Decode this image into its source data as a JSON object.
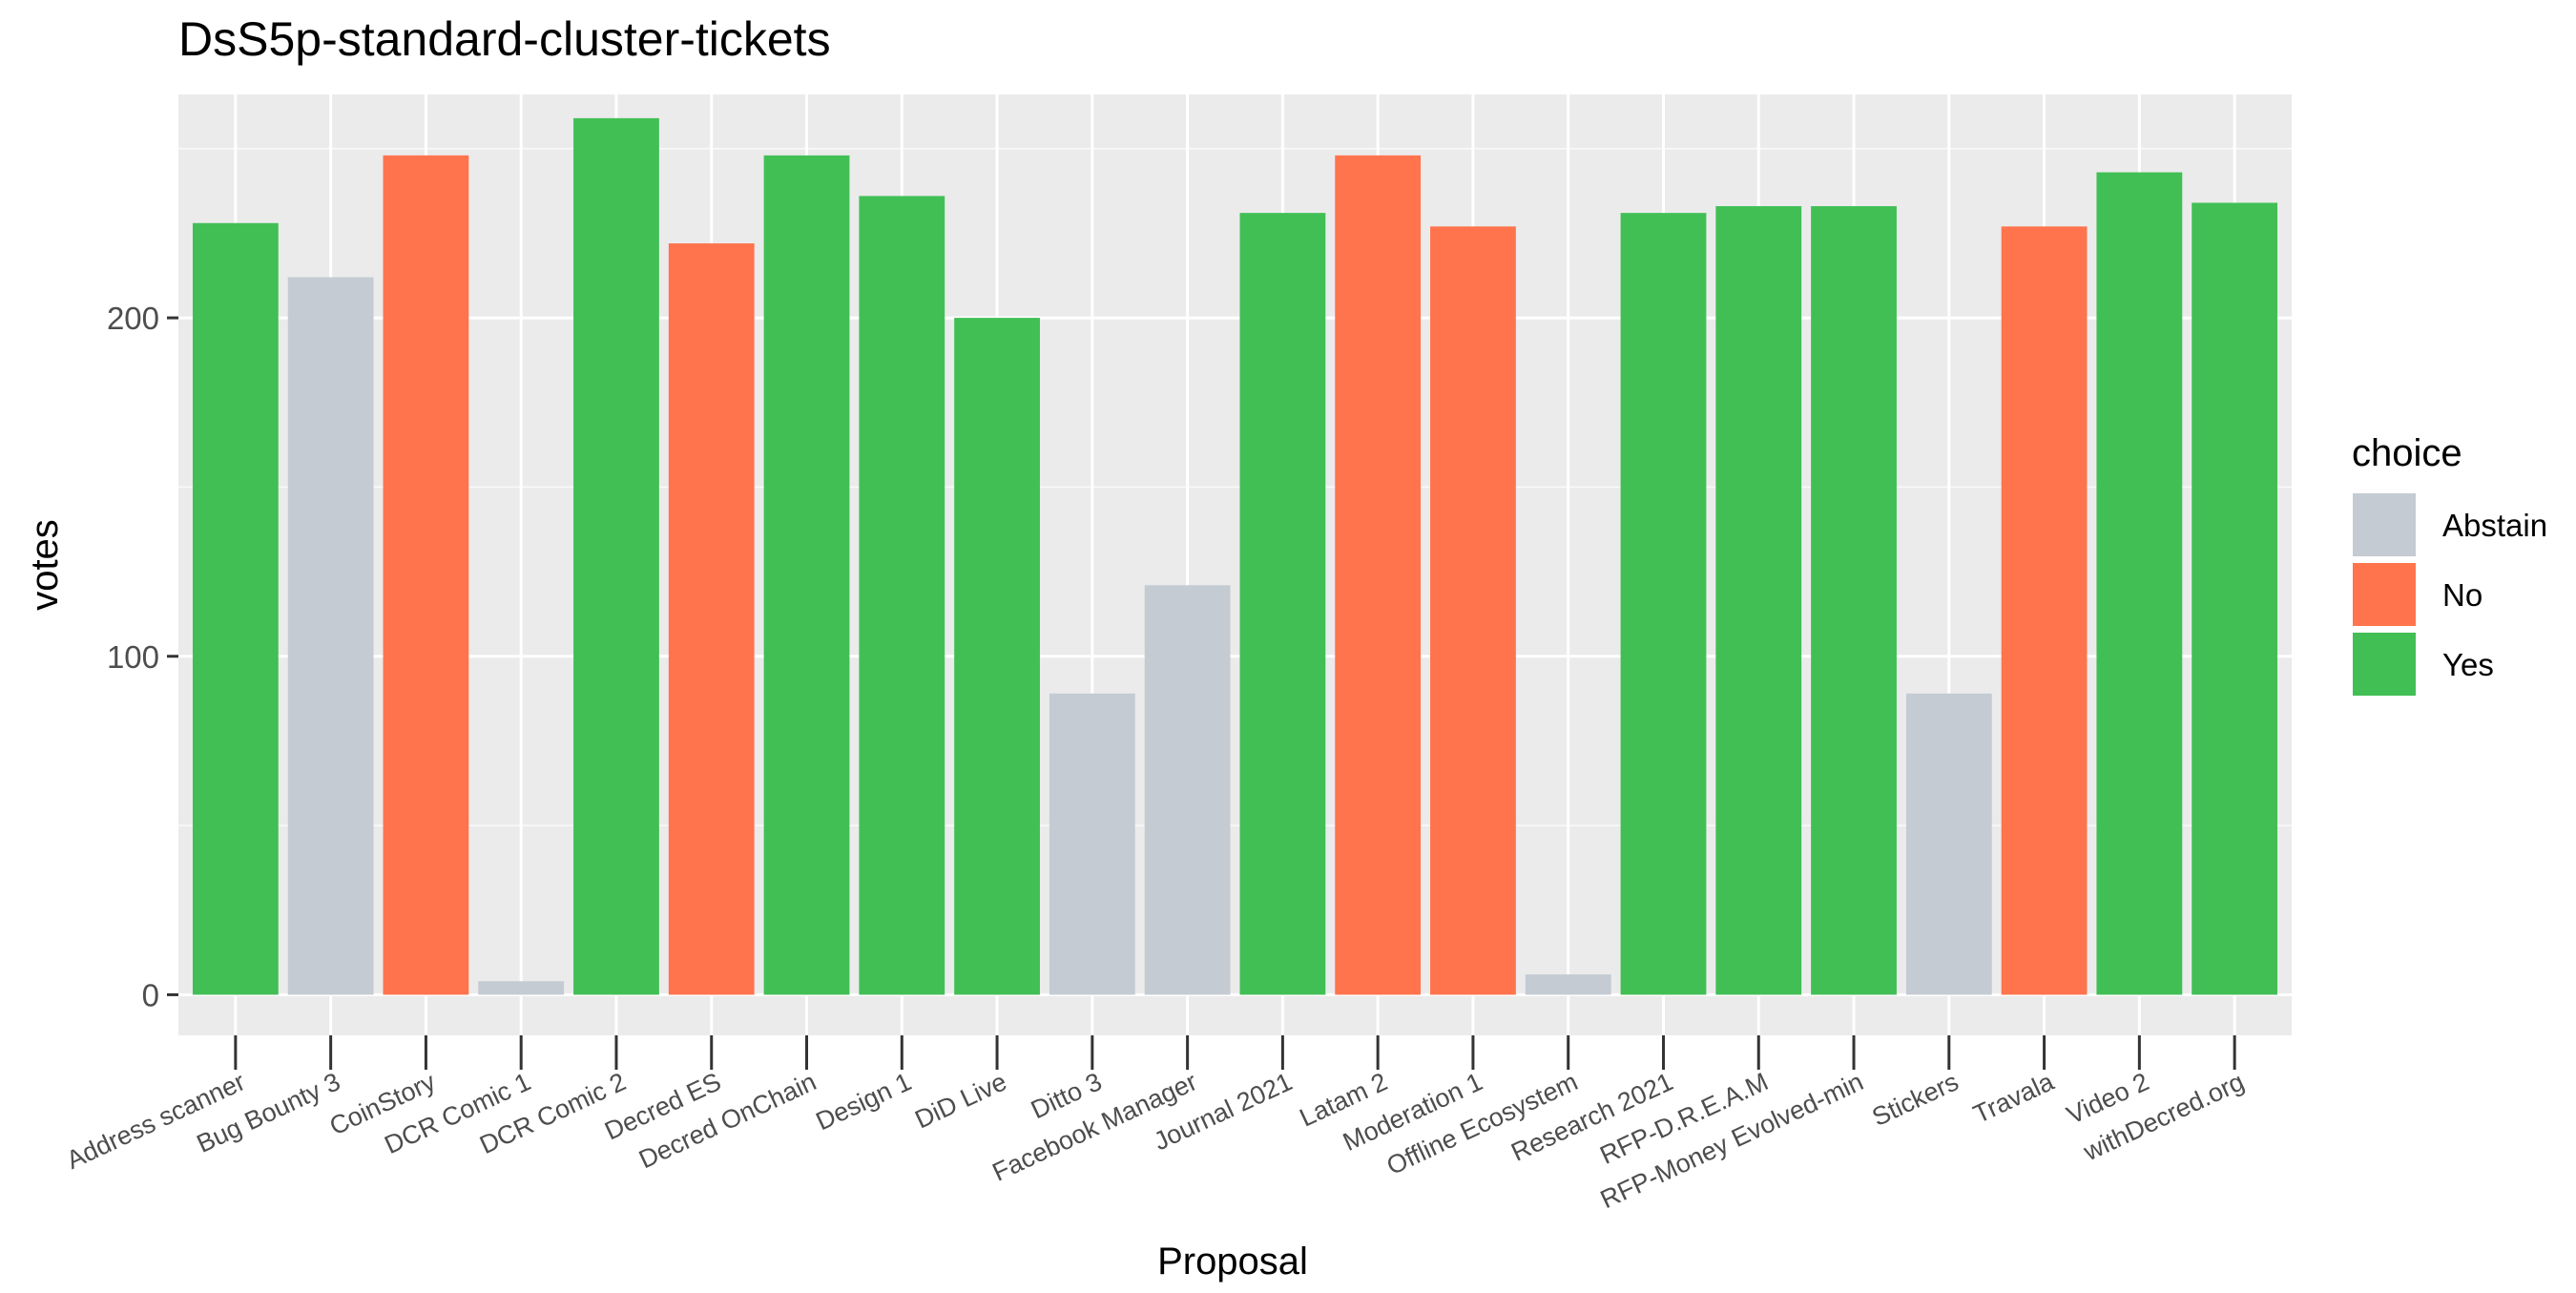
{
  "chart_data": {
    "type": "bar",
    "title": "DsS5p-standard-cluster-tickets",
    "xlabel": "Proposal",
    "ylabel": "votes",
    "ylim": [
      -12,
      266
    ],
    "yticks": [
      0,
      100,
      200
    ],
    "grid": true,
    "legend": {
      "title": "choice",
      "position": "right",
      "entries": [
        {
          "label": "Abstain",
          "color": "#C4CBD3"
        },
        {
          "label": "No",
          "color": "#FF734D"
        },
        {
          "label": "Yes",
          "color": "#41BF55"
        }
      ]
    },
    "categories": [
      "Address scanner",
      "Bug Bounty 3",
      "CoinStory",
      "DCR Comic 1",
      "DCR Comic 2",
      "Decred ES",
      "Decred OnChain",
      "Design 1",
      "DiD Live",
      "Ditto 3",
      "Facebook Manager",
      "Journal 2021",
      "Latam 2",
      "Moderation 1",
      "Offline Ecosystem",
      "Research 2021",
      "RFP-D.R.E.A.M",
      "RFP-Money Evolved-min",
      "Stickers",
      "Travala",
      "Video 2",
      "withDecred.org"
    ],
    "values": [
      228,
      212,
      248,
      4,
      259,
      222,
      248,
      236,
      200,
      89,
      121,
      231,
      248,
      227,
      6,
      231,
      233,
      233,
      89,
      227,
      243,
      234
    ],
    "choices": [
      "Yes",
      "Abstain",
      "No",
      "Abstain",
      "Yes",
      "No",
      "Yes",
      "Yes",
      "Yes",
      "Abstain",
      "Abstain",
      "Yes",
      "No",
      "No",
      "Abstain",
      "Yes",
      "Yes",
      "Yes",
      "Abstain",
      "No",
      "Yes",
      "Yes"
    ]
  }
}
